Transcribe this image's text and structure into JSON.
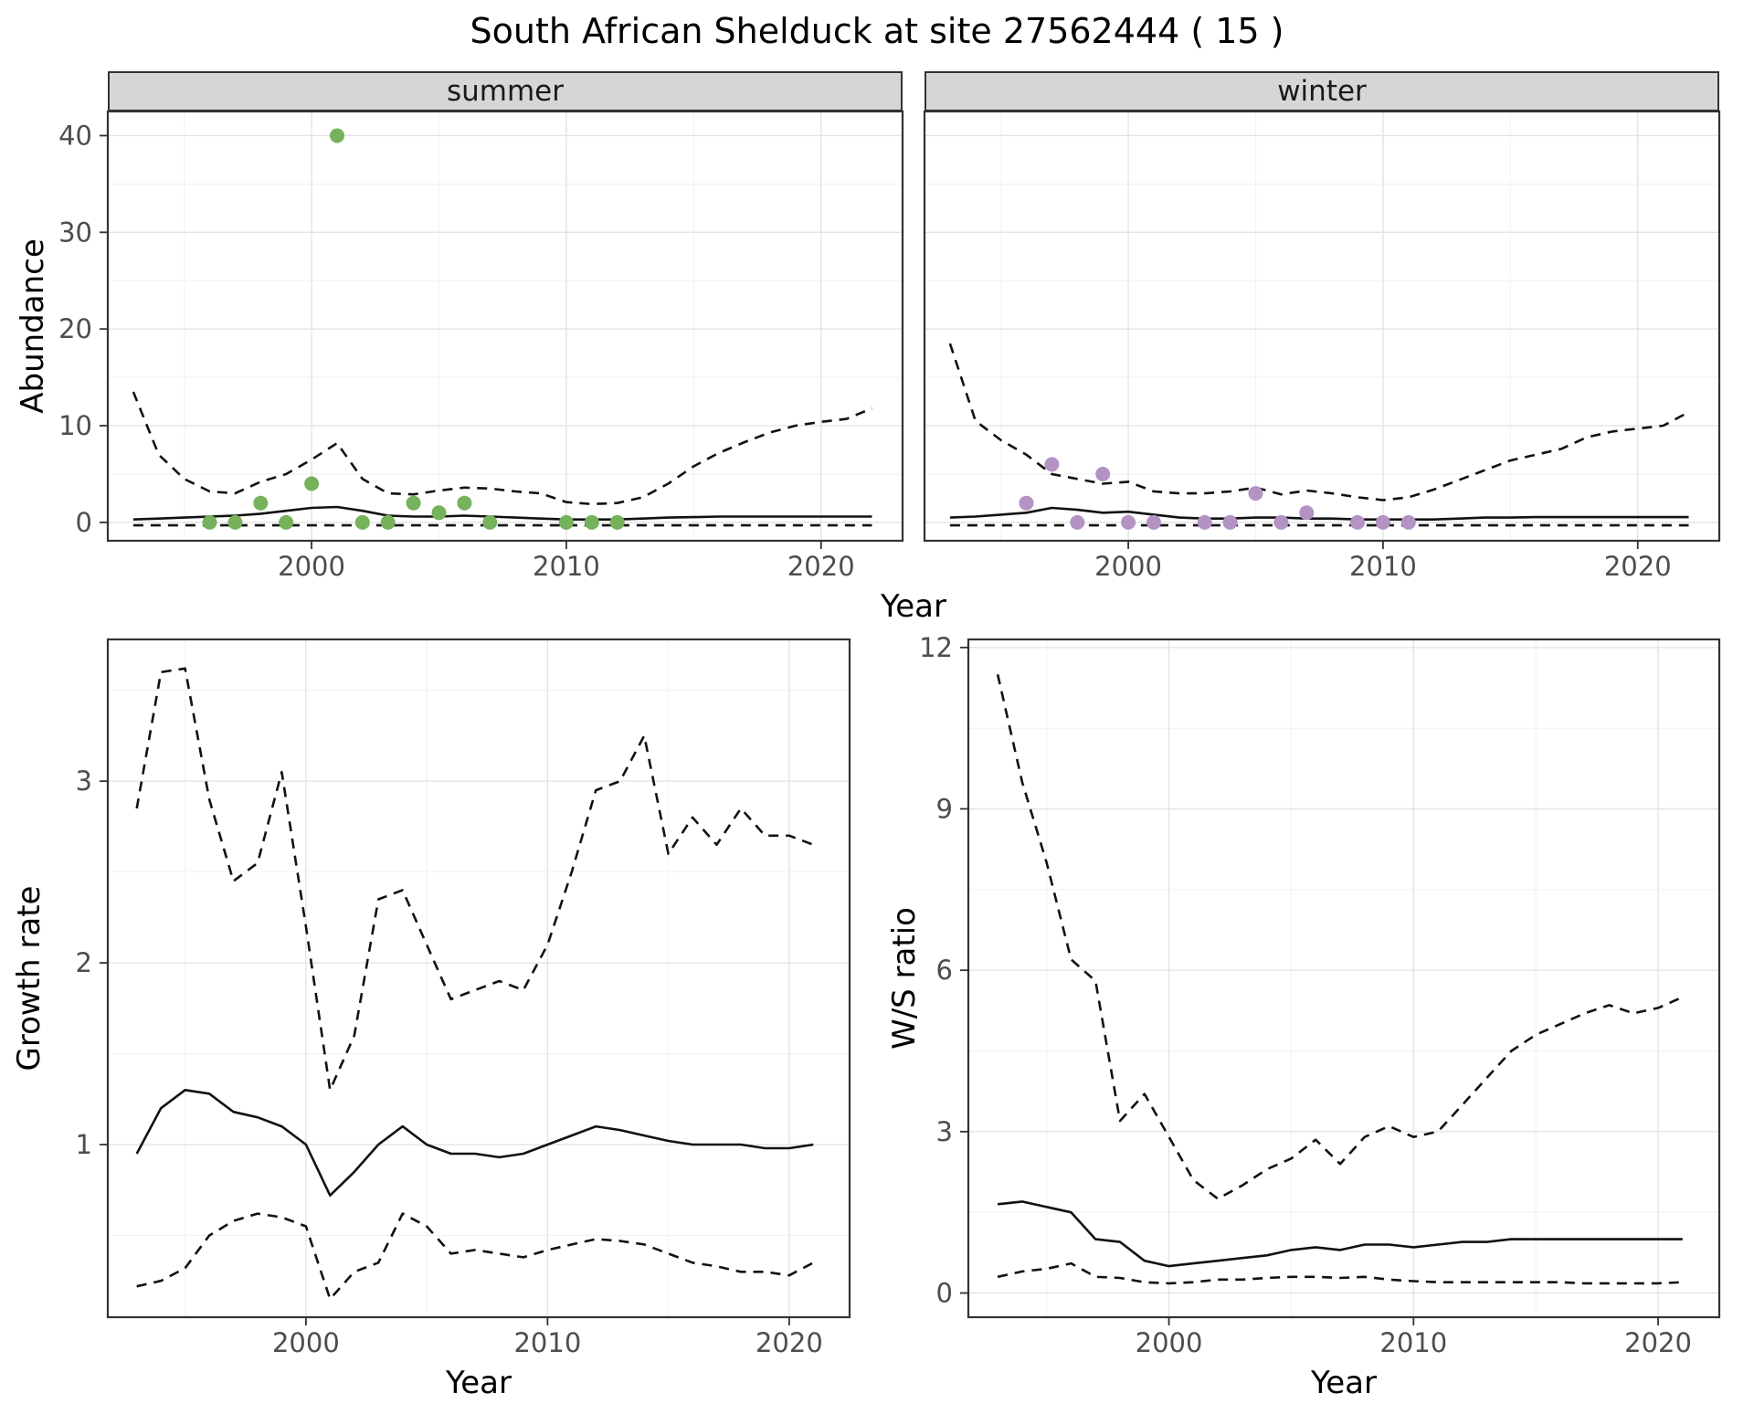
{
  "title": "South African Shelduck at site 27562444 ( 15 )",
  "axis_titles": {
    "abundance": "Abundance",
    "year": "Year",
    "growth_rate": "Growth rate",
    "ws_ratio": "W/S ratio"
  },
  "colors": {
    "summer_point": "#76b15c",
    "winter_point": "#b392c4",
    "line": "#111111",
    "panel_border": "#333333",
    "grid_major": "#e4e4e4",
    "grid_minor": "#f2f2f2",
    "strip_bg": "#d6d6d6"
  },
  "chart_data": [
    {
      "id": "abundance-summer",
      "type": "scatter",
      "facet_label": "summer",
      "xlabel": "Year",
      "ylabel": "Abundance",
      "xlim": [
        1992,
        2023.2
      ],
      "ylim": [
        -1.9,
        42.5
      ],
      "xticks": [
        2000,
        2010,
        2020
      ],
      "yticks": [
        0,
        10,
        20,
        30,
        40
      ],
      "xminor": [
        1995,
        2005,
        2015
      ],
      "yminor": [
        5,
        15,
        25,
        35
      ],
      "show_y_tick_labels": true,
      "series": [
        {
          "name": "lower-ci",
          "style": "dashed",
          "x": [
            1993,
            1994,
            1995,
            1996,
            1997,
            1998,
            1999,
            2000,
            2001,
            2002,
            2003,
            2004,
            2005,
            2006,
            2007,
            2008,
            2009,
            2010,
            2011,
            2012,
            2013,
            2014,
            2015,
            2016,
            2017,
            2018,
            2019,
            2020,
            2021,
            2022
          ],
          "y": [
            -0.3,
            -0.3,
            -0.3,
            -0.3,
            -0.3,
            -0.3,
            -0.3,
            -0.3,
            -0.3,
            -0.3,
            -0.3,
            -0.3,
            -0.3,
            -0.3,
            -0.3,
            -0.3,
            -0.3,
            -0.3,
            -0.3,
            -0.3,
            -0.3,
            -0.3,
            -0.3,
            -0.3,
            -0.3,
            -0.3,
            -0.3,
            -0.3,
            -0.3,
            -0.3
          ]
        },
        {
          "name": "upper-ci",
          "style": "dashed",
          "x": [
            1993,
            1994,
            1995,
            1996,
            1997,
            1998,
            1999,
            2000,
            2001,
            2002,
            2003,
            2004,
            2005,
            2006,
            2007,
            2008,
            2009,
            2010,
            2011,
            2012,
            2013,
            2014,
            2015,
            2016,
            2017,
            2018,
            2019,
            2020,
            2021,
            2022
          ],
          "y": [
            13.5,
            7.0,
            4.5,
            3.2,
            3.0,
            4.2,
            5.0,
            6.5,
            8.2,
            4.5,
            3.0,
            2.9,
            3.3,
            3.6,
            3.5,
            3.2,
            3.0,
            2.1,
            1.9,
            2.0,
            2.6,
            4.0,
            5.8,
            7.2,
            8.3,
            9.3,
            10.0,
            10.4,
            10.7,
            11.8
          ]
        },
        {
          "name": "fit",
          "style": "solid",
          "x": [
            1993,
            1994,
            1995,
            1996,
            1997,
            1998,
            1999,
            2000,
            2001,
            2002,
            2003,
            2004,
            2005,
            2006,
            2007,
            2008,
            2009,
            2010,
            2011,
            2012,
            2013,
            2014,
            2015,
            2016,
            2017,
            2018,
            2019,
            2020,
            2021,
            2022
          ],
          "y": [
            0.3,
            0.4,
            0.5,
            0.6,
            0.7,
            0.9,
            1.2,
            1.5,
            1.6,
            1.2,
            0.7,
            0.6,
            0.6,
            0.7,
            0.6,
            0.5,
            0.4,
            0.3,
            0.3,
            0.3,
            0.4,
            0.5,
            0.55,
            0.6,
            0.6,
            0.6,
            0.6,
            0.6,
            0.6,
            0.6
          ]
        },
        {
          "name": "observed-counts",
          "style": "points",
          "color": "#76b15c",
          "x": [
            1996,
            1997,
            1998,
            1999,
            2000,
            2001,
            2002,
            2003,
            2004,
            2005,
            2006,
            2007,
            2010,
            2011,
            2012
          ],
          "y": [
            0,
            0,
            2,
            0,
            4,
            40,
            0,
            0,
            2,
            1,
            2,
            0,
            0,
            0,
            0
          ]
        }
      ]
    },
    {
      "id": "abundance-winter",
      "type": "scatter",
      "facet_label": "winter",
      "xlabel": "Year",
      "ylabel": "Abundance",
      "xlim": [
        1992,
        2023.2
      ],
      "ylim": [
        -1.9,
        42.5
      ],
      "xticks": [
        2000,
        2010,
        2020
      ],
      "yticks": [
        0,
        10,
        20,
        30,
        40
      ],
      "xminor": [
        1995,
        2005,
        2015
      ],
      "yminor": [
        5,
        15,
        25,
        35
      ],
      "show_y_tick_labels": false,
      "series": [
        {
          "name": "lower-ci",
          "style": "dashed",
          "x": [
            1993,
            1994,
            1995,
            1996,
            1997,
            1998,
            1999,
            2000,
            2001,
            2002,
            2003,
            2004,
            2005,
            2006,
            2007,
            2008,
            2009,
            2010,
            2011,
            2012,
            2013,
            2014,
            2015,
            2016,
            2017,
            2018,
            2019,
            2020,
            2021,
            2022
          ],
          "y": [
            -0.3,
            -0.3,
            -0.3,
            -0.3,
            -0.3,
            -0.3,
            -0.3,
            -0.3,
            -0.3,
            -0.3,
            -0.3,
            -0.3,
            -0.3,
            -0.3,
            -0.3,
            -0.3,
            -0.3,
            -0.3,
            -0.3,
            -0.3,
            -0.3,
            -0.3,
            -0.3,
            -0.3,
            -0.3,
            -0.3,
            -0.3,
            -0.3,
            -0.3,
            -0.3
          ]
        },
        {
          "name": "upper-ci",
          "style": "dashed",
          "x": [
            1993,
            1994,
            1995,
            1996,
            1997,
            1998,
            1999,
            2000,
            2001,
            2002,
            2003,
            2004,
            2005,
            2006,
            2007,
            2008,
            2009,
            2010,
            2011,
            2012,
            2013,
            2014,
            2015,
            2016,
            2017,
            2018,
            2019,
            2020,
            2021,
            2022
          ],
          "y": [
            18.5,
            10.5,
            8.5,
            7.0,
            5.0,
            4.5,
            4.0,
            4.2,
            3.2,
            3.0,
            3.0,
            3.2,
            3.6,
            2.9,
            3.3,
            3.0,
            2.6,
            2.3,
            2.6,
            3.4,
            4.4,
            5.4,
            6.4,
            7.0,
            7.6,
            8.8,
            9.4,
            9.7,
            10.0,
            11.4
          ]
        },
        {
          "name": "fit",
          "style": "solid",
          "x": [
            1993,
            1994,
            1995,
            1996,
            1997,
            1998,
            1999,
            2000,
            2001,
            2002,
            2003,
            2004,
            2005,
            2006,
            2007,
            2008,
            2009,
            2010,
            2011,
            2012,
            2013,
            2014,
            2015,
            2016,
            2017,
            2018,
            2019,
            2020,
            2021,
            2022
          ],
          "y": [
            0.5,
            0.6,
            0.8,
            1.0,
            1.5,
            1.3,
            1.0,
            1.1,
            0.8,
            0.5,
            0.4,
            0.4,
            0.5,
            0.5,
            0.4,
            0.4,
            0.3,
            0.3,
            0.3,
            0.3,
            0.4,
            0.5,
            0.5,
            0.55,
            0.55,
            0.55,
            0.55,
            0.55,
            0.55,
            0.55
          ]
        },
        {
          "name": "observed-counts",
          "style": "points",
          "color": "#b392c4",
          "x": [
            1996,
            1997,
            1998,
            1999,
            2000,
            2001,
            2003,
            2004,
            2005,
            2006,
            2007,
            2009,
            2010,
            2011
          ],
          "y": [
            2,
            6,
            0,
            5,
            0,
            0,
            0,
            0,
            3,
            0,
            1,
            0,
            0,
            0
          ]
        }
      ]
    },
    {
      "id": "growth-rate",
      "type": "line",
      "facet_label": "",
      "xlabel": "Year",
      "ylabel": "Growth rate",
      "xlim": [
        1991.8,
        2022.5
      ],
      "ylim": [
        0.05,
        3.78
      ],
      "xticks": [
        2000,
        2010,
        2020
      ],
      "yticks": [
        1,
        2,
        3
      ],
      "xminor": [
        1995,
        2005,
        2015
      ],
      "yminor": [
        0.5,
        1.5,
        2.5,
        3.5
      ],
      "show_y_tick_labels": true,
      "series": [
        {
          "name": "lower-ci",
          "style": "dashed",
          "x": [
            1993,
            1994,
            1995,
            1996,
            1997,
            1998,
            1999,
            2000,
            2001,
            2002,
            2003,
            2004,
            2005,
            2006,
            2007,
            2008,
            2009,
            2010,
            2011,
            2012,
            2013,
            2014,
            2015,
            2016,
            2017,
            2018,
            2019,
            2020,
            2021
          ],
          "y": [
            0.22,
            0.25,
            0.32,
            0.5,
            0.58,
            0.62,
            0.6,
            0.55,
            0.15,
            0.3,
            0.35,
            0.62,
            0.55,
            0.4,
            0.42,
            0.4,
            0.38,
            0.42,
            0.45,
            0.48,
            0.47,
            0.45,
            0.4,
            0.35,
            0.33,
            0.3,
            0.3,
            0.28,
            0.35
          ]
        },
        {
          "name": "upper-ci",
          "style": "dashed",
          "x": [
            1993,
            1994,
            1995,
            1996,
            1997,
            1998,
            1999,
            2000,
            2001,
            2002,
            2003,
            2004,
            2005,
            2006,
            2007,
            2008,
            2009,
            2010,
            2011,
            2012,
            2013,
            2014,
            2015,
            2016,
            2017,
            2018,
            2019,
            2020,
            2021
          ],
          "y": [
            2.85,
            3.6,
            3.62,
            2.9,
            2.45,
            2.55,
            3.05,
            2.2,
            1.3,
            1.6,
            2.35,
            2.4,
            2.1,
            1.8,
            1.85,
            1.9,
            1.85,
            2.1,
            2.5,
            2.95,
            3.0,
            3.25,
            2.6,
            2.8,
            2.65,
            2.85,
            2.7,
            2.7,
            2.65
          ]
        },
        {
          "name": "fit",
          "style": "solid",
          "x": [
            1993,
            1994,
            1995,
            1996,
            1997,
            1998,
            1999,
            2000,
            2001,
            2002,
            2003,
            2004,
            2005,
            2006,
            2007,
            2008,
            2009,
            2010,
            2011,
            2012,
            2013,
            2014,
            2015,
            2016,
            2017,
            2018,
            2019,
            2020,
            2021
          ],
          "y": [
            0.95,
            1.2,
            1.3,
            1.28,
            1.18,
            1.15,
            1.1,
            1.0,
            0.72,
            0.85,
            1.0,
            1.1,
            1.0,
            0.95,
            0.95,
            0.93,
            0.95,
            1.0,
            1.05,
            1.1,
            1.08,
            1.05,
            1.02,
            1.0,
            1.0,
            1.0,
            0.98,
            0.98,
            1.0
          ]
        }
      ]
    },
    {
      "id": "ws-ratio",
      "type": "line",
      "facet_label": "",
      "xlabel": "Year",
      "ylabel": "W/S ratio",
      "xlim": [
        1991.8,
        2022.5
      ],
      "ylim": [
        -0.45,
        12.15
      ],
      "xticks": [
        2000,
        2010,
        2020
      ],
      "yticks": [
        0,
        3,
        6,
        9,
        12
      ],
      "xminor": [
        1995,
        2005,
        2015
      ],
      "yminor": [
        1.5,
        4.5,
        7.5,
        10.5
      ],
      "show_y_tick_labels": true,
      "series": [
        {
          "name": "lower-ci",
          "style": "dashed",
          "x": [
            1993,
            1994,
            1995,
            1996,
            1997,
            1998,
            1999,
            2000,
            2001,
            2002,
            2003,
            2004,
            2005,
            2006,
            2007,
            2008,
            2009,
            2010,
            2011,
            2012,
            2013,
            2014,
            2015,
            2016,
            2017,
            2018,
            2019,
            2020,
            2021
          ],
          "y": [
            0.3,
            0.4,
            0.45,
            0.55,
            0.3,
            0.28,
            0.2,
            0.18,
            0.2,
            0.25,
            0.25,
            0.28,
            0.3,
            0.3,
            0.28,
            0.3,
            0.25,
            0.22,
            0.2,
            0.2,
            0.2,
            0.2,
            0.2,
            0.2,
            0.18,
            0.18,
            0.18,
            0.18,
            0.2
          ]
        },
        {
          "name": "upper-ci",
          "style": "dashed",
          "x": [
            1993,
            1994,
            1995,
            1996,
            1997,
            1998,
            1999,
            2000,
            2001,
            2002,
            2003,
            2004,
            2005,
            2006,
            2007,
            2008,
            2009,
            2010,
            2011,
            2012,
            2013,
            2014,
            2015,
            2016,
            2017,
            2018,
            2019,
            2020,
            2021
          ],
          "y": [
            11.5,
            9.5,
            8.0,
            6.2,
            5.8,
            3.2,
            3.7,
            2.9,
            2.1,
            1.75,
            2.0,
            2.3,
            2.5,
            2.85,
            2.4,
            2.9,
            3.1,
            2.9,
            3.0,
            3.5,
            4.0,
            4.5,
            4.8,
            5.0,
            5.2,
            5.35,
            5.2,
            5.3,
            5.5
          ]
        },
        {
          "name": "fit",
          "style": "solid",
          "x": [
            1993,
            1994,
            1995,
            1996,
            1997,
            1998,
            1999,
            2000,
            2001,
            2002,
            2003,
            2004,
            2005,
            2006,
            2007,
            2008,
            2009,
            2010,
            2011,
            2012,
            2013,
            2014,
            2015,
            2016,
            2017,
            2018,
            2019,
            2020,
            2021
          ],
          "y": [
            1.65,
            1.7,
            1.6,
            1.5,
            1.0,
            0.95,
            0.6,
            0.5,
            0.55,
            0.6,
            0.65,
            0.7,
            0.8,
            0.85,
            0.8,
            0.9,
            0.9,
            0.85,
            0.9,
            0.95,
            0.95,
            1.0,
            1.0,
            1.0,
            1.0,
            1.0,
            1.0,
            1.0,
            1.0
          ]
        }
      ]
    }
  ]
}
